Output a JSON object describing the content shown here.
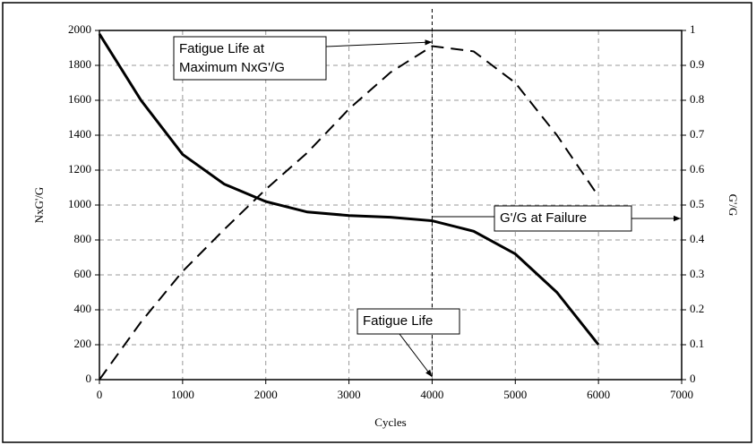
{
  "chart_data": {
    "type": "line",
    "x_label": "Cycles",
    "y_label": "NxG'/G",
    "y2_label": "G'/G",
    "x": [
      0,
      500,
      1000,
      1500,
      2000,
      2500,
      3000,
      3500,
      4000,
      4500,
      5000,
      5500,
      6000
    ],
    "series": [
      {
        "name": "NxG'/G",
        "color": "#000000",
        "dash": true,
        "values": [
          0,
          330,
          620,
          860,
          1090,
          1300,
          1550,
          1760,
          1910,
          1880,
          1700,
          1400,
          1050
        ]
      },
      {
        "name": "G'/G",
        "color": "#000000",
        "dash": false,
        "axis": "y2",
        "values": [
          0.99,
          0.8,
          0.645,
          0.56,
          0.51,
          0.48,
          0.47,
          0.465,
          0.455,
          0.425,
          0.36,
          0.25,
          0.1
        ]
      }
    ],
    "xlim": [
      0,
      7000
    ],
    "xticks": [
      0,
      1000,
      2000,
      3000,
      4000,
      5000,
      6000,
      7000
    ],
    "ylim": [
      0,
      2000
    ],
    "yticks": [
      0,
      200,
      400,
      600,
      800,
      1000,
      1200,
      1400,
      1600,
      1800,
      2000
    ],
    "y2lim": [
      0,
      1
    ],
    "y2ticks": [
      0,
      0.1,
      0.2,
      0.3,
      0.4,
      0.5,
      0.6,
      0.7,
      0.8,
      0.9,
      1
    ],
    "grid": true,
    "fatigue_life_cycles": 4000,
    "annotations": [
      {
        "lines": [
          "Fatigue Life at",
          "Maximum NxG'/G"
        ]
      },
      {
        "lines": [
          "G'/G at Failure"
        ]
      },
      {
        "lines": [
          "Fatigue Life"
        ]
      }
    ]
  }
}
